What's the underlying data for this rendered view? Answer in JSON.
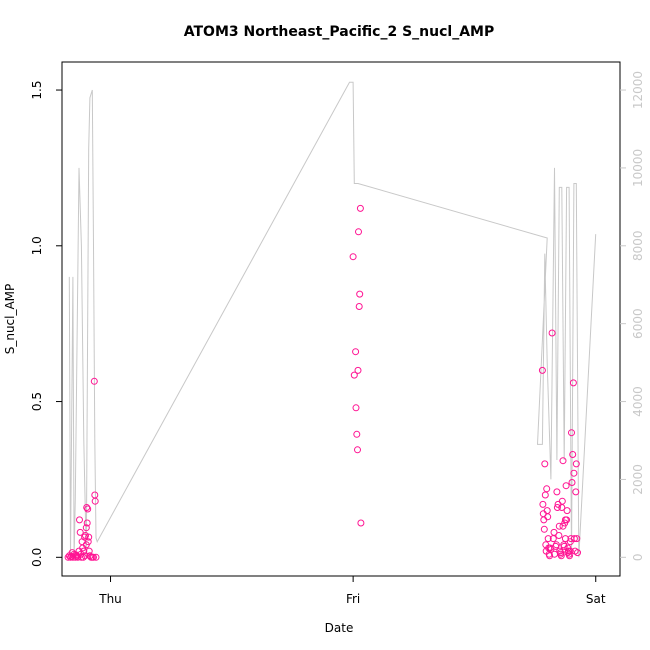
{
  "chart_data": {
    "type": "scatter",
    "title": "ATOM3 Northeast_Pacific_2 S_nucl_AMP",
    "xlabel": "Date",
    "ylabel": "S_nucl_AMP",
    "x_ticks": [
      {
        "label": "Thu",
        "value": 0
      },
      {
        "label": "Fri",
        "value": 1
      },
      {
        "label": "Sat",
        "value": 2
      }
    ],
    "xlim": [
      -0.2,
      2.1
    ],
    "y_ticks": [
      "0.0",
      "0.5",
      "1.0",
      "1.5"
    ],
    "ylim": [
      -0.06,
      1.59
    ],
    "y2_ticks": [
      "0",
      "2000",
      "4000",
      "6000",
      "8000",
      "10000",
      "12000"
    ],
    "y2lim": [
      -480,
      12720
    ],
    "grid": false,
    "legend": "none",
    "colors": {
      "points": "#ff1493",
      "altitude_line": "#c8c8c8",
      "axes": "#000000",
      "right_axis": "#c8c8c8"
    },
    "series": [
      {
        "kind": "points",
        "points": [
          [
            -0.17,
            0.005
          ],
          [
            -0.165,
            0.0
          ],
          [
            -0.16,
            0.003
          ],
          [
            -0.155,
            0.0
          ],
          [
            -0.15,
            0.01
          ],
          [
            -0.145,
            0.0
          ],
          [
            -0.14,
            0.005
          ],
          [
            -0.135,
            0.0
          ],
          [
            -0.13,
            0.02
          ],
          [
            -0.128,
            0.12
          ],
          [
            -0.125,
            0.08
          ],
          [
            -0.122,
            0.01
          ],
          [
            -0.12,
            0.0
          ],
          [
            -0.117,
            0.05
          ],
          [
            -0.115,
            0.03
          ],
          [
            -0.112,
            0.0
          ],
          [
            -0.11,
            0.02
          ],
          [
            -0.107,
            0.065
          ],
          [
            -0.105,
            0.005
          ],
          [
            -0.1,
            0.095
          ],
          [
            -0.098,
            0.16
          ],
          [
            -0.096,
            0.11
          ],
          [
            -0.094,
            0.155
          ],
          [
            -0.092,
            0.05
          ],
          [
            -0.09,
            0.065
          ],
          [
            -0.088,
            0.02
          ],
          [
            -0.085,
            0.005
          ],
          [
            -0.08,
            0.0
          ],
          [
            -0.075,
            0.0
          ],
          [
            -0.07,
            0.0
          ],
          [
            -0.067,
            0.565
          ],
          [
            -0.065,
            0.2
          ],
          [
            -0.063,
            0.18
          ],
          [
            -0.06,
            0.0
          ],
          [
            -0.175,
            0.0
          ],
          [
            -0.158,
            0.015
          ],
          [
            -0.143,
            0.008
          ],
          [
            -0.138,
            0.003
          ],
          [
            -0.103,
            0.07
          ],
          [
            -0.1,
            0.04
          ],
          [
            1.0,
            0.965
          ],
          [
            1.005,
            0.585
          ],
          [
            1.01,
            0.66
          ],
          [
            1.012,
            0.48
          ],
          [
            1.015,
            0.395
          ],
          [
            1.018,
            0.345
          ],
          [
            1.02,
            0.6
          ],
          [
            1.022,
            1.045
          ],
          [
            1.025,
            0.805
          ],
          [
            1.027,
            0.845
          ],
          [
            1.03,
            1.12
          ],
          [
            1.032,
            0.11
          ],
          [
            1.78,
            0.6
          ],
          [
            1.782,
            0.17
          ],
          [
            1.784,
            0.14
          ],
          [
            1.786,
            0.12
          ],
          [
            1.788,
            0.09
          ],
          [
            1.79,
            0.3
          ],
          [
            1.792,
            0.2
          ],
          [
            1.794,
            0.04
          ],
          [
            1.796,
            0.02
          ],
          [
            1.798,
            0.22
          ],
          [
            1.8,
            0.15
          ],
          [
            1.802,
            0.13
          ],
          [
            1.804,
            0.06
          ],
          [
            1.806,
            0.03
          ],
          [
            1.808,
            0.01
          ],
          [
            1.81,
            0.005
          ],
          [
            1.812,
            0.03
          ],
          [
            1.815,
            0.025
          ],
          [
            1.82,
            0.72
          ],
          [
            1.825,
            0.06
          ],
          [
            1.828,
            0.08
          ],
          [
            1.83,
            0.01
          ],
          [
            1.835,
            0.035
          ],
          [
            1.838,
            0.04
          ],
          [
            1.84,
            0.21
          ],
          [
            1.842,
            0.16
          ],
          [
            1.845,
            0.17
          ],
          [
            1.848,
            0.07
          ],
          [
            1.85,
            0.1
          ],
          [
            1.852,
            0.02
          ],
          [
            1.855,
            0.01
          ],
          [
            1.858,
            0.005
          ],
          [
            1.86,
            0.16
          ],
          [
            1.862,
            0.18
          ],
          [
            1.865,
            0.31
          ],
          [
            1.868,
            0.04
          ],
          [
            1.87,
            0.035
          ],
          [
            1.872,
            0.11
          ],
          [
            1.875,
            0.06
          ],
          [
            1.878,
            0.23
          ],
          [
            1.88,
            0.12
          ],
          [
            1.882,
            0.15
          ],
          [
            1.885,
            0.03
          ],
          [
            1.888,
            0.02
          ],
          [
            1.89,
            0.01
          ],
          [
            1.892,
            0.005
          ],
          [
            1.895,
            0.05
          ],
          [
            1.898,
            0.06
          ],
          [
            1.9,
            0.4
          ],
          [
            1.902,
            0.24
          ],
          [
            1.905,
            0.33
          ],
          [
            1.908,
            0.56
          ],
          [
            1.91,
            0.27
          ],
          [
            1.912,
            0.06
          ],
          [
            1.915,
            0.02
          ],
          [
            1.918,
            0.21
          ],
          [
            1.92,
            0.3
          ],
          [
            1.922,
            0.06
          ],
          [
            1.925,
            0.015
          ],
          [
            1.895,
            0.02
          ],
          [
            1.885,
            0.015
          ],
          [
            1.875,
            0.12
          ],
          [
            1.865,
            0.1
          ],
          [
            1.855,
            0.015
          ]
        ]
      },
      {
        "kind": "line",
        "axis": "right",
        "points": [
          [
            -0.17,
            7200
          ],
          [
            -0.165,
            0
          ],
          [
            -0.155,
            7200
          ],
          [
            -0.15,
            0
          ],
          [
            -0.145,
            1500
          ],
          [
            -0.13,
            10000
          ],
          [
            -0.12,
            8000
          ],
          [
            -0.11,
            3000
          ],
          [
            -0.1,
            0
          ],
          [
            -0.09,
            10500
          ],
          [
            -0.085,
            11800
          ],
          [
            -0.075,
            12000
          ],
          [
            -0.07,
            8000
          ],
          [
            -0.065,
            3000
          ],
          [
            -0.06,
            500
          ],
          [
            -0.055,
            400
          ],
          [
            0.985,
            12200
          ],
          [
            1.0,
            12200
          ],
          [
            1.005,
            9600
          ],
          [
            1.02,
            9600
          ],
          [
            1.8,
            8200
          ],
          [
            1.76,
            2900
          ],
          [
            1.78,
            2900
          ],
          [
            1.79,
            7800
          ],
          [
            1.8,
            5000
          ],
          [
            1.815,
            2000
          ],
          [
            1.83,
            10000
          ],
          [
            1.84,
            2500
          ],
          [
            1.85,
            9500
          ],
          [
            1.86,
            9500
          ],
          [
            1.87,
            2500
          ],
          [
            1.88,
            9500
          ],
          [
            1.89,
            9500
          ],
          [
            1.9,
            0
          ],
          [
            1.91,
            9600
          ],
          [
            1.92,
            9600
          ],
          [
            1.93,
            0
          ],
          [
            2.0,
            8300
          ]
        ]
      }
    ]
  }
}
